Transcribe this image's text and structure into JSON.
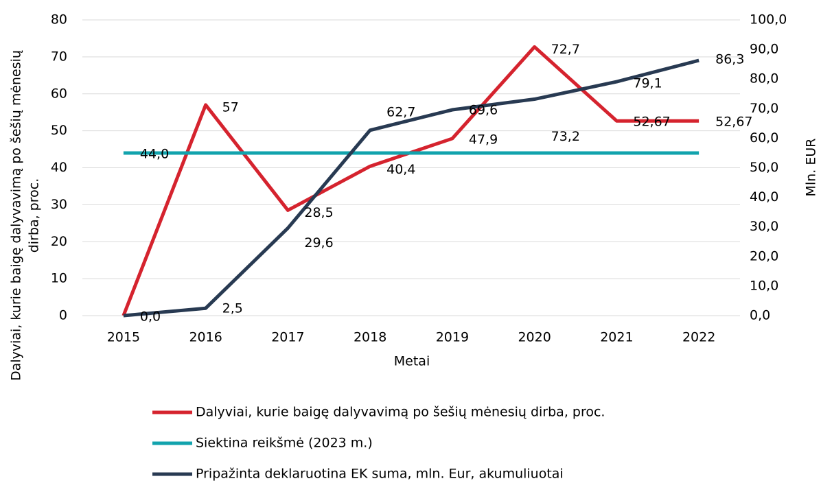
{
  "chart_data": {
    "type": "line",
    "categories": [
      "2015",
      "2016",
      "2017",
      "2018",
      "2019",
      "2020",
      "2021",
      "2022"
    ],
    "xlabel": "Metai",
    "ylabel": [
      "Dalyviai, kurie baigę dalyvavimą po šešių mėnesių",
      "dirba, proc."
    ],
    "y2label": "Mln. EUR",
    "ylim": [
      0,
      80
    ],
    "yticks": [
      0,
      10,
      20,
      30,
      40,
      50,
      60,
      70,
      80
    ],
    "y2lim": [
      0,
      100
    ],
    "y2ticks": [
      {
        "value": 0,
        "label": "0,0"
      },
      {
        "value": 10,
        "label": "10,0"
      },
      {
        "value": 20,
        "label": "20,0"
      },
      {
        "value": 30,
        "label": "30,0"
      },
      {
        "value": 40,
        "label": "40,0"
      },
      {
        "value": 50,
        "label": "50,0"
      },
      {
        "value": 60,
        "label": "60,0"
      },
      {
        "value": 70,
        "label": "70,0"
      },
      {
        "value": 80,
        "label": "80,0"
      },
      {
        "value": 90,
        "label": "90,0"
      },
      {
        "value": 100,
        "label": "100,0"
      }
    ],
    "grid": true,
    "series": [
      {
        "name": "Dalyviai, kurie baigę dalyvavimą po šešių mėnesių dirba, proc.",
        "color": "#d5232e",
        "values": [
          0,
          57,
          28.5,
          40.4,
          47.9,
          72.7,
          52.67,
          52.67
        ],
        "value_labels": [
          null,
          "57",
          "28,5",
          "40,4",
          "47,9",
          "72,7",
          "52,67",
          "52,67"
        ]
      },
      {
        "name": "Siektina reikšmė (2023 m.)",
        "color": "#12a3ad",
        "values": [
          44,
          44,
          44,
          44,
          44,
          44,
          44,
          44
        ],
        "value_labels": [
          "44,0",
          null,
          null,
          null,
          null,
          null,
          null,
          null
        ]
      },
      {
        "name": "Pripažinta deklaruotina EK suma, mln. Eur, akumuliuotai",
        "color": "#283a52",
        "axis": "y2",
        "values": [
          0,
          2.5,
          29.6,
          62.7,
          69.6,
          73.2,
          79.1,
          86.3
        ],
        "value_labels": [
          "0,0",
          "2,5",
          "29,6",
          "62,7",
          "69,6",
          "73,2",
          "79,1",
          "86,3"
        ]
      }
    ]
  }
}
